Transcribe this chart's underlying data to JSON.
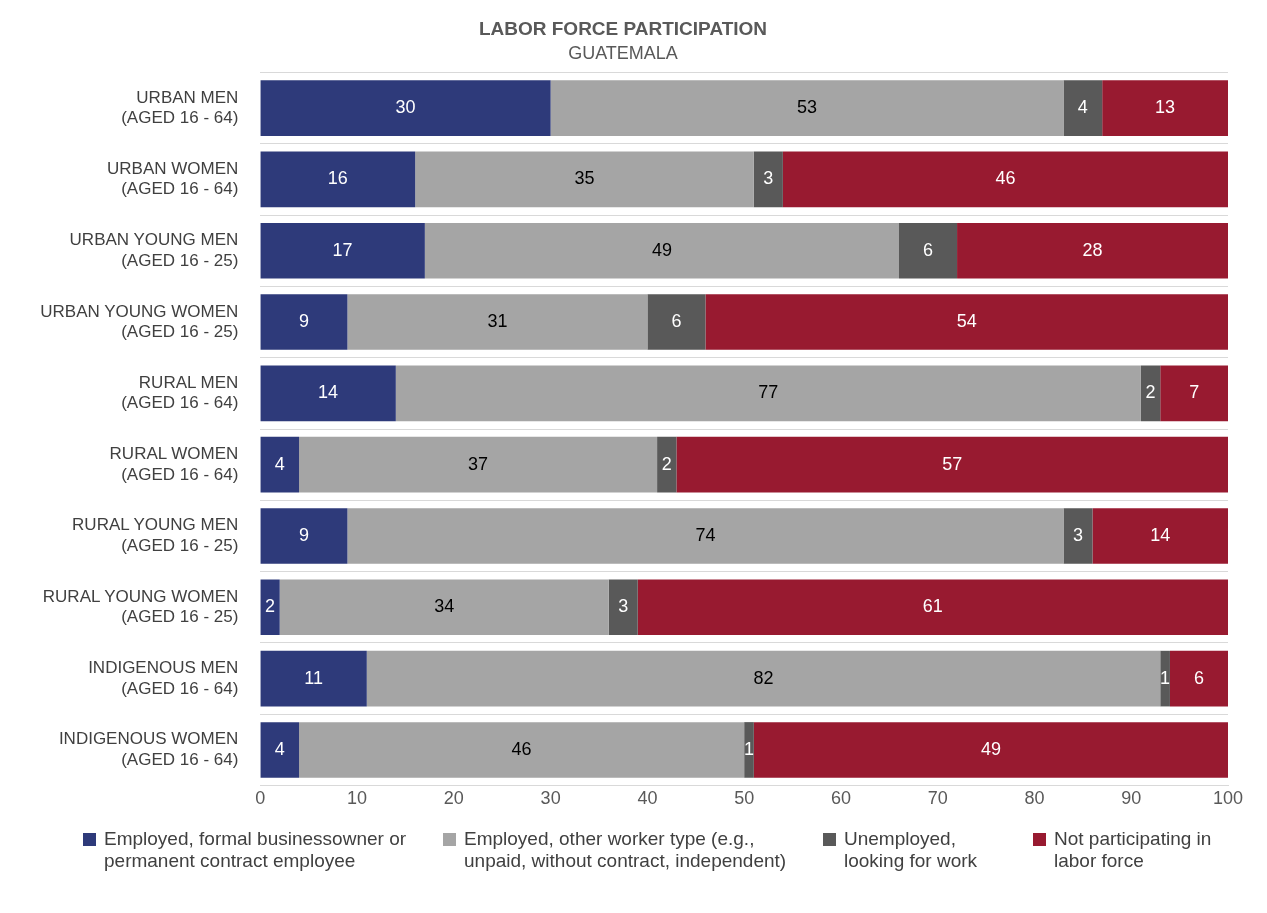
{
  "chart_data": {
    "type": "bar",
    "orientation": "horizontal",
    "stacked": true,
    "title": "LABOR FORCE PARTICIPATION",
    "subtitle": "GUATEMALA",
    "categories": [
      "URBAN MEN\n(AGED 16 - 64)",
      "URBAN WOMEN\n(AGED 16 - 64)",
      "URBAN YOUNG MEN\n(AGED 16 - 25)",
      "URBAN YOUNG WOMEN\n(AGED 16 - 25)",
      "RURAL MEN\n(AGED 16 - 64)",
      "RURAL WOMEN\n(AGED 16 - 64)",
      "RURAL YOUNG MEN\n(AGED 16 - 25)",
      "RURAL YOUNG WOMEN\n(AGED 16 - 25)",
      "INDIGENOUS MEN\n(AGED 16 - 64)",
      "INDIGENOUS WOMEN\n(AGED 16 - 64)"
    ],
    "series": [
      {
        "name": "Employed, formal businessowner or permanent contract employee",
        "color": "#2e3a7a",
        "values": [
          30,
          16,
          17,
          9,
          14,
          4,
          9,
          2,
          11,
          4
        ]
      },
      {
        "name": "Employed, other worker type (e.g., unpaid, without contract, independent)",
        "color": "#a5a5a5",
        "values": [
          53,
          35,
          49,
          31,
          77,
          37,
          74,
          34,
          82,
          46
        ]
      },
      {
        "name": "Unemployed, looking for work",
        "color": "#595959",
        "values": [
          4,
          3,
          6,
          6,
          2,
          2,
          3,
          3,
          1,
          1
        ]
      },
      {
        "name": "Not participating in labor force",
        "color": "#981a30",
        "values": [
          13,
          46,
          28,
          54,
          7,
          57,
          14,
          61,
          6,
          49
        ]
      }
    ],
    "xlim": [
      0,
      100
    ],
    "xticks": [
      0,
      10,
      20,
      30,
      40,
      50,
      60,
      70,
      80,
      90,
      100
    ],
    "data_labels": true,
    "grid": "y",
    "legend": "bottom"
  }
}
